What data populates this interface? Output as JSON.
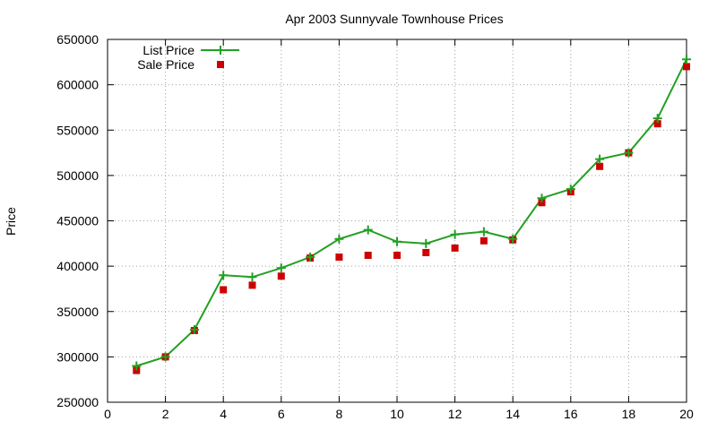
{
  "chart_data": {
    "type": "line",
    "title": "Apr 2003 Sunnyvale Townhouse Prices",
    "xlabel": "",
    "ylabel": "Price",
    "xlim": [
      0,
      20
    ],
    "ylim": [
      250000,
      650000
    ],
    "x_ticks": [
      0,
      2,
      4,
      6,
      8,
      10,
      12,
      14,
      16,
      18,
      20
    ],
    "y_ticks": [
      250000,
      300000,
      350000,
      400000,
      450000,
      500000,
      550000,
      600000,
      650000
    ],
    "grid": true,
    "legend_position": "top-left",
    "x": [
      1,
      2,
      3,
      4,
      5,
      6,
      7,
      8,
      9,
      10,
      11,
      12,
      13,
      14,
      15,
      16,
      17,
      18,
      19,
      20
    ],
    "series": [
      {
        "name": "List Price",
        "style": "line-with-plus-markers",
        "color": "#22a022",
        "values": [
          290000,
          300000,
          330000,
          390000,
          388000,
          398000,
          410000,
          430000,
          440000,
          427000,
          425000,
          435000,
          438000,
          430000,
          475000,
          485000,
          518000,
          525000,
          563000,
          628000
        ]
      },
      {
        "name": "Sale Price",
        "style": "square-markers",
        "color": "#cc0000",
        "values": [
          285000,
          300000,
          329000,
          374000,
          379000,
          389000,
          409000,
          410000,
          412000,
          412000,
          415000,
          420000,
          428000,
          429000,
          470000,
          482000,
          510000,
          525000,
          557000,
          620000
        ]
      }
    ]
  }
}
